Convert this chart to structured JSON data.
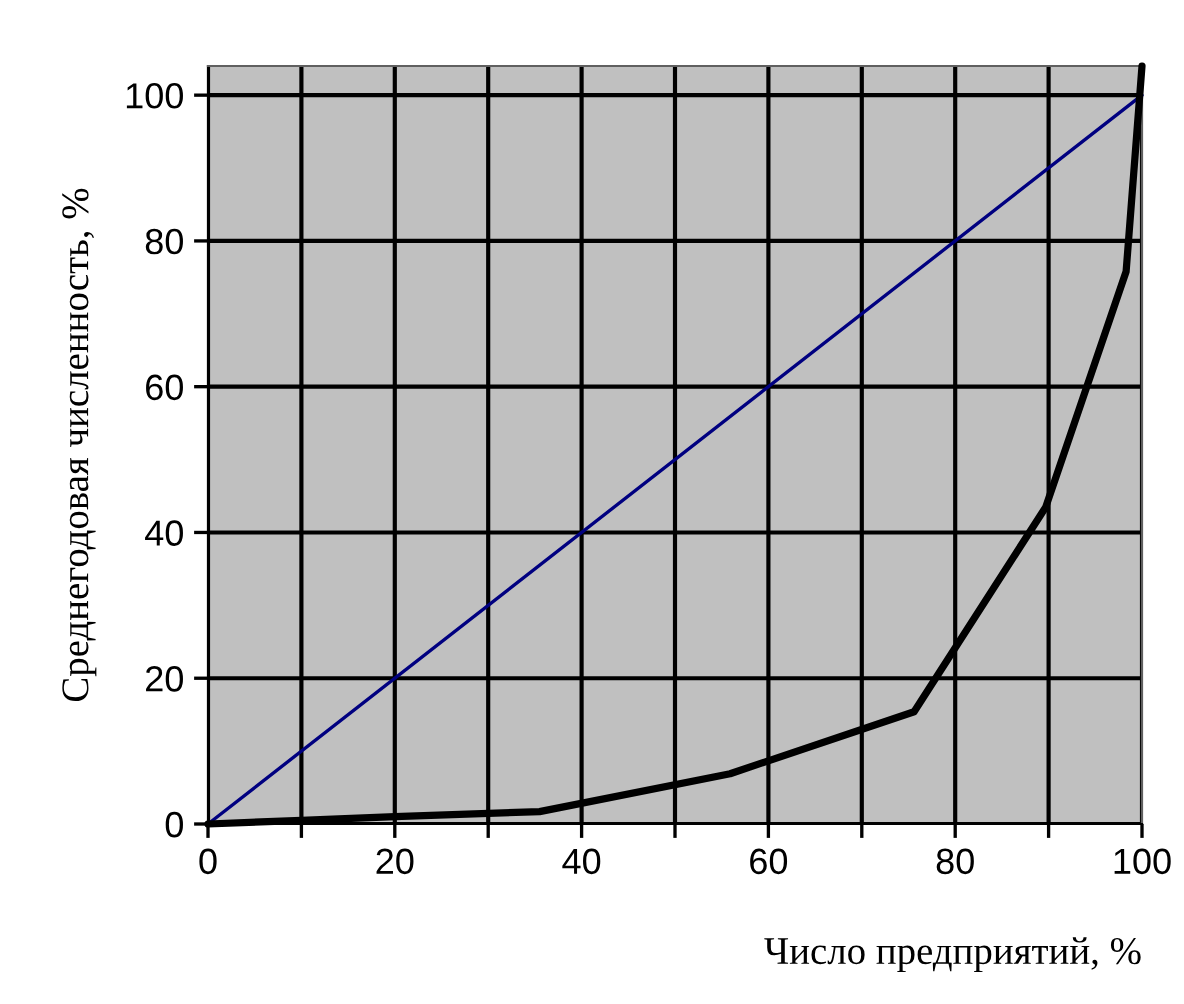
{
  "chart_data": {
    "type": "line",
    "xlabel": "Число предприятий, %",
    "ylabel": "Среднегодовая численность, %",
    "series": [
      {
        "x": [
          0,
          100
        ],
        "values": [
          0,
          100
        ],
        "color": "#000080"
      },
      {
        "x": [
          0,
          10,
          20,
          35.5,
          55.9,
          75.6,
          89.7,
          98.3,
          100
        ],
        "values": [
          0,
          0.5,
          1,
          1.7,
          6.9,
          15.4,
          43.5,
          75.8,
          104
        ],
        "color": "#000000"
      }
    ],
    "xlim": [
      0,
      100
    ],
    "ylim": [
      0,
      104
    ],
    "xticks": [
      0,
      {
        "value": 10,
        "label": null
      },
      20,
      {
        "value": 30,
        "label": null
      },
      40,
      {
        "value": 50,
        "label": null
      },
      60,
      {
        "value": 70,
        "label": null
      },
      80,
      {
        "value": 90,
        "label": null
      },
      100
    ],
    "yticks": [
      0,
      20,
      40,
      60,
      80,
      100
    ],
    "grid": true,
    "legend": false,
    "marker": "none",
    "line_style": "solid"
  }
}
